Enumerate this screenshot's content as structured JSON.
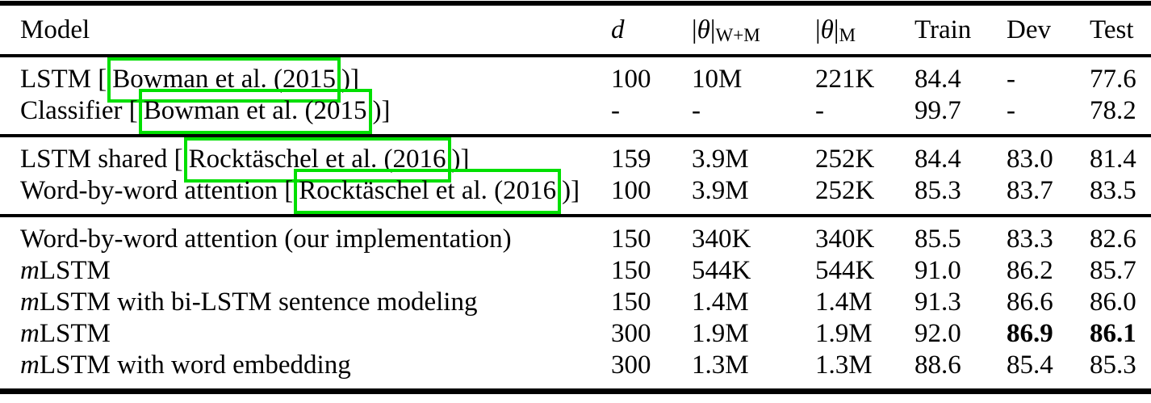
{
  "table": {
    "annotation_color": "#00df00",
    "headers": [
      {
        "key": "model",
        "label": "Model"
      },
      {
        "key": "d",
        "label": "d",
        "math": true
      },
      {
        "key": "theta_wm",
        "bars": true,
        "sym": "θ",
        "sub": "W+M"
      },
      {
        "key": "theta_m",
        "bars": true,
        "sym": "θ",
        "sub": "M"
      },
      {
        "key": "train",
        "label": "Train"
      },
      {
        "key": "dev",
        "label": "Dev"
      },
      {
        "key": "test",
        "label": "Test"
      }
    ],
    "sections": [
      {
        "rows": [
          {
            "model": [
              {
                "t": "LSTM ["
              },
              {
                "t": "Bowman et al. (2015",
                "cite": true
              },
              {
                "t": ")]"
              }
            ],
            "d": "100",
            "theta_wm": "10M",
            "theta_m": "221K",
            "train": "84.4",
            "dev": "-",
            "test": "77.6",
            "bold": []
          },
          {
            "model": [
              {
                "t": "Classifier ["
              },
              {
                "t": "Bowman et al. (2015",
                "cite": true
              },
              {
                "t": ")]"
              }
            ],
            "d": "-",
            "theta_wm": "-",
            "theta_m": "-",
            "train": "99.7",
            "dev": "-",
            "test": "78.2",
            "bold": []
          }
        ]
      },
      {
        "rows": [
          {
            "model": [
              {
                "t": "LSTM shared ["
              },
              {
                "t": "Rocktäschel et al. (2016",
                "cite": true
              },
              {
                "t": ")]"
              }
            ],
            "d": "159",
            "theta_wm": "3.9M",
            "theta_m": "252K",
            "train": "84.4",
            "dev": "83.0",
            "test": "81.4",
            "bold": []
          },
          {
            "model": [
              {
                "t": "Word-by-word attention ["
              },
              {
                "t": "Rocktäschel et al. (2016",
                "cite": true
              },
              {
                "t": ")]"
              }
            ],
            "d": "100",
            "theta_wm": "3.9M",
            "theta_m": "252K",
            "train": "85.3",
            "dev": "83.7",
            "test": "83.5",
            "bold": []
          }
        ]
      },
      {
        "rows": [
          {
            "model": [
              {
                "t": "Word-by-word attention (our implementation)"
              }
            ],
            "d": "150",
            "theta_wm": "340K",
            "theta_m": "340K",
            "train": "85.5",
            "dev": "83.3",
            "test": "82.6",
            "bold": []
          },
          {
            "model": [
              {
                "t": "m",
                "italic": true
              },
              {
                "t": "LSTM"
              }
            ],
            "d": "150",
            "theta_wm": "544K",
            "theta_m": "544K",
            "train": "91.0",
            "dev": "86.2",
            "test": "85.7",
            "bold": []
          },
          {
            "model": [
              {
                "t": "m",
                "italic": true
              },
              {
                "t": "LSTM with bi-LSTM sentence modeling"
              }
            ],
            "d": "150",
            "theta_wm": "1.4M",
            "theta_m": "1.4M",
            "train": "91.3",
            "dev": "86.6",
            "test": "86.0",
            "bold": []
          },
          {
            "model": [
              {
                "t": "m",
                "italic": true
              },
              {
                "t": "LSTM"
              }
            ],
            "d": "300",
            "theta_wm": "1.9M",
            "theta_m": "1.9M",
            "train": "92.0",
            "dev": "86.9",
            "test": "86.1",
            "bold": [
              "dev",
              "test"
            ]
          },
          {
            "model": [
              {
                "t": "m",
                "italic": true
              },
              {
                "t": "LSTM with word embedding"
              }
            ],
            "d": "300",
            "theta_wm": "1.3M",
            "theta_m": "1.3M",
            "train": "88.6",
            "dev": "85.4",
            "test": "85.3",
            "bold": []
          }
        ]
      }
    ]
  }
}
